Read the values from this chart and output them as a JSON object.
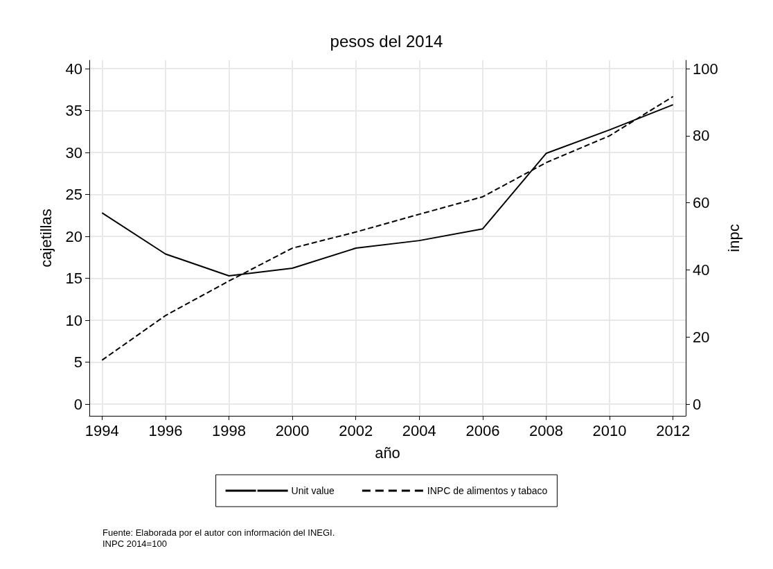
{
  "chart_data": {
    "type": "line",
    "title": "pesos del 2014",
    "xlabel": "año",
    "ylabel": "cajetillas",
    "y2label": "inpc",
    "x": [
      1994,
      1996,
      1998,
      2000,
      2002,
      2004,
      2006,
      2008,
      2010,
      2012
    ],
    "series": [
      {
        "name": "Unit value",
        "color": "#000000",
        "line_style": "solid",
        "values": [
          22.8,
          17.9,
          15.3,
          16.2,
          18.6,
          19.5,
          20.9,
          29.9,
          32.7,
          35.7
        ]
      },
      {
        "name": "INPC de alimentos y tabaco",
        "color": "#000000",
        "line_style": "dashed",
        "axis": "y2",
        "values": [
          13.1,
          26.4,
          36.7,
          46.5,
          51.3,
          56.6,
          61.8,
          72.0,
          80.0,
          91.7
        ]
      }
    ],
    "xlim": [
      1993.6,
      2012.4
    ],
    "xticks": [
      1994,
      1996,
      1998,
      2000,
      2002,
      2004,
      2006,
      2008,
      2010,
      2012
    ],
    "ylim": [
      -1.4,
      41
    ],
    "yticks": [
      0,
      5,
      10,
      15,
      20,
      25,
      30,
      35,
      40
    ],
    "y2lim": [
      -3.5,
      102.5
    ],
    "y2ticks": [
      0,
      20,
      40,
      60,
      80,
      100
    ],
    "grid": true,
    "legend": "bottom",
    "marker": "none",
    "annotations": [
      "Fuente: Elaborada por el autor con información del INEGI.",
      "INPC 2014=100"
    ]
  }
}
